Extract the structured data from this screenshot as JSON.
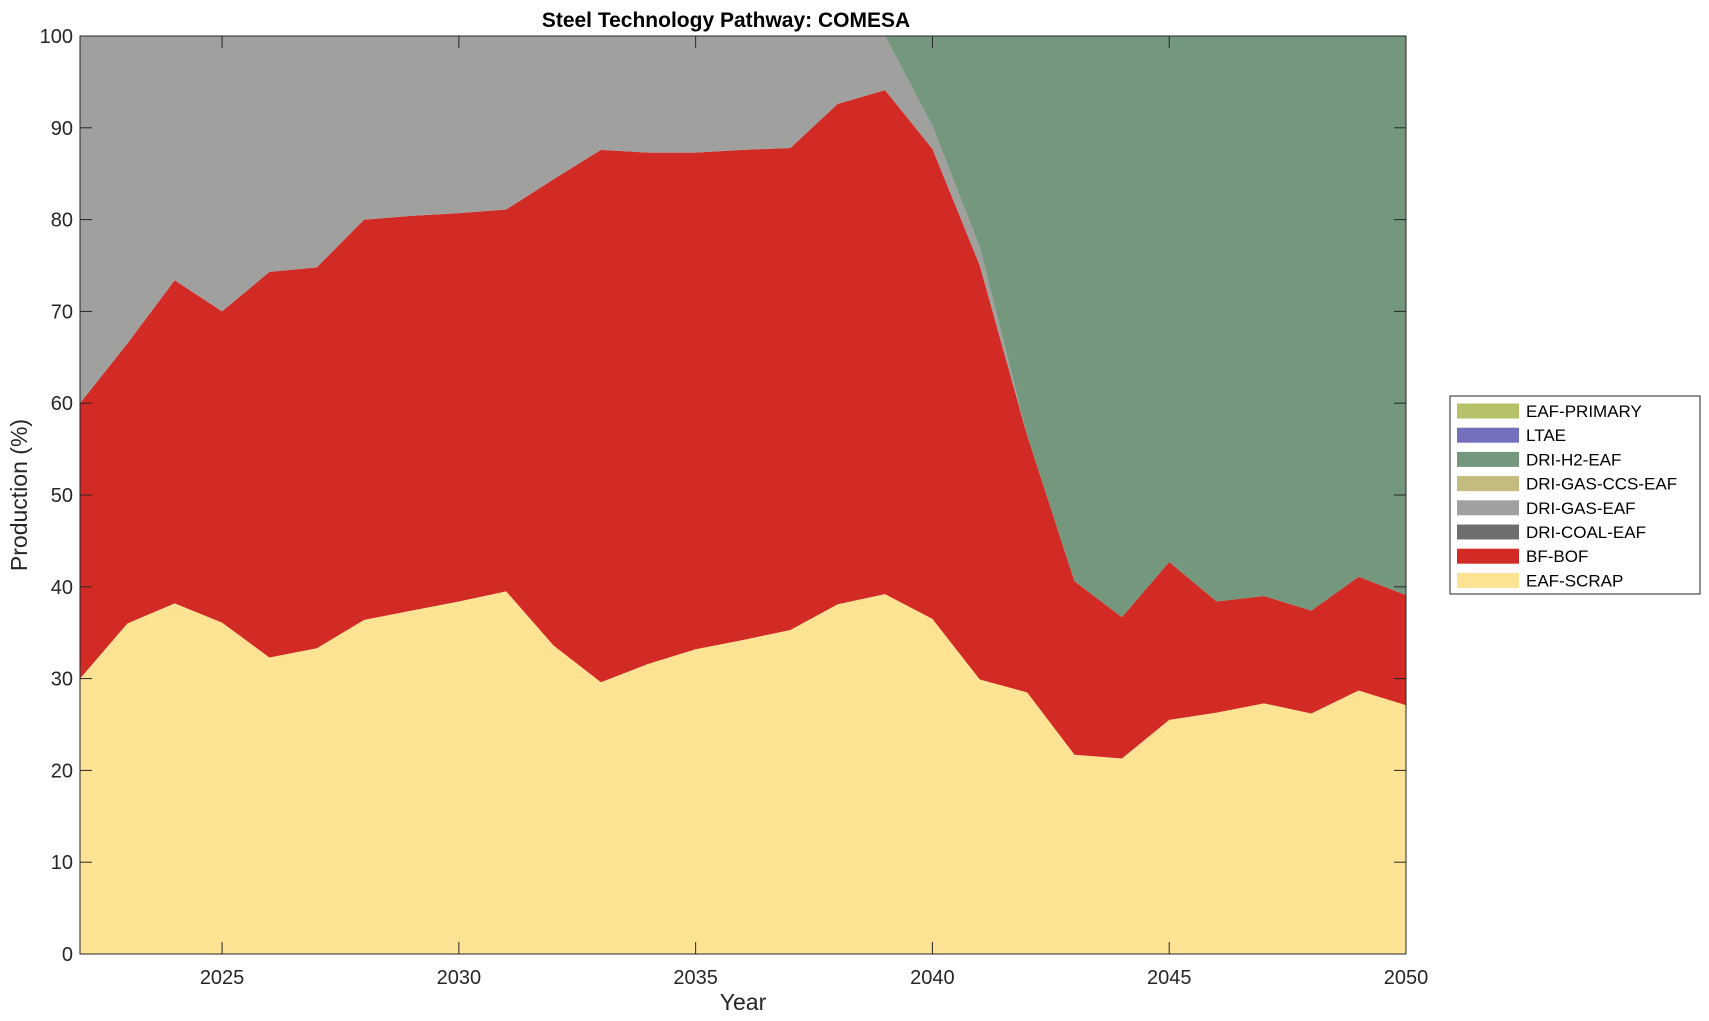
{
  "chart_data": {
    "type": "area",
    "stacked": true,
    "title": "Steel Technology Pathway: COMESA",
    "xlabel": "Year",
    "ylabel": "Production (%)",
    "xlim": [
      2022,
      2050
    ],
    "ylim": [
      0,
      100
    ],
    "xticks": [
      2025,
      2030,
      2035,
      2040,
      2045,
      2050
    ],
    "yticks": [
      0,
      10,
      20,
      30,
      40,
      50,
      60,
      70,
      80,
      90,
      100
    ],
    "grid": false,
    "legend_position": "right",
    "x": [
      2022,
      2023,
      2024,
      2025,
      2026,
      2027,
      2028,
      2029,
      2030,
      2031,
      2032,
      2033,
      2034,
      2035,
      2036,
      2037,
      2038,
      2039,
      2040,
      2041,
      2042,
      2043,
      2044,
      2045,
      2046,
      2047,
      2048,
      2049,
      2050
    ],
    "series": [
      {
        "name": "EAF-SCRAP",
        "color": "#FFE395",
        "values": [
          30.0,
          36.0,
          38.2,
          36.1,
          32.3,
          33.3,
          36.4,
          37.4,
          38.4,
          39.5,
          33.6,
          29.6,
          31.6,
          33.2,
          34.2,
          35.3,
          38.1,
          39.2,
          36.5,
          29.9,
          28.5,
          21.7,
          21.3,
          25.5,
          26.3,
          27.3,
          26.2,
          28.7,
          27.1
        ]
      },
      {
        "name": "BF-BOF",
        "color": "#D22B26",
        "values": [
          30.0,
          30.5,
          35.2,
          33.9,
          42.0,
          41.5,
          43.6,
          43.0,
          42.3,
          41.6,
          50.8,
          58.0,
          55.7,
          54.1,
          53.4,
          52.5,
          54.5,
          54.9,
          51.2,
          45.1,
          28.0,
          18.9,
          15.4,
          17.2,
          12.1,
          11.7,
          11.2,
          12.4,
          12.0
        ]
      },
      {
        "name": "DRI-COAL-EAF",
        "color": "#6E6E6E",
        "values": [
          0,
          0,
          0,
          0,
          0,
          0,
          0,
          0,
          0,
          0,
          0,
          0,
          0,
          0,
          0,
          0,
          0,
          0,
          0,
          0,
          0,
          0,
          0,
          0,
          0,
          0,
          0,
          0,
          0
        ]
      },
      {
        "name": "DRI-GAS-EAF",
        "color": "#A0A09E",
        "values": [
          40.0,
          33.5,
          26.6,
          30.0,
          25.7,
          25.2,
          20.0,
          19.6,
          19.3,
          18.9,
          15.6,
          12.4,
          12.7,
          12.7,
          12.4,
          12.2,
          7.4,
          5.9,
          2.5,
          2.0,
          0,
          0,
          0,
          0,
          0,
          0,
          0,
          0,
          0
        ]
      },
      {
        "name": "DRI-GAS-CCS-EAF",
        "color": "#C4BB7F",
        "values": [
          0,
          0,
          0,
          0,
          0,
          0,
          0,
          0,
          0,
          0,
          0,
          0,
          0,
          0,
          0,
          0,
          0,
          0,
          0,
          0,
          0,
          0,
          0,
          0,
          0,
          0,
          0,
          0,
          0
        ]
      },
      {
        "name": "DRI-H2-EAF",
        "color": "#74977E",
        "values": [
          0,
          0,
          0,
          0,
          0,
          0,
          0,
          0,
          0,
          0,
          0,
          0,
          0,
          0,
          0,
          0,
          0,
          0,
          9.8,
          23.0,
          43.5,
          59.4,
          63.3,
          57.3,
          61.6,
          61.0,
          62.6,
          58.9,
          60.9
        ]
      },
      {
        "name": "LTAE",
        "color": "#7570BD",
        "values": [
          0,
          0,
          0,
          0,
          0,
          0,
          0,
          0,
          0,
          0,
          0,
          0,
          0,
          0,
          0,
          0,
          0,
          0,
          0,
          0,
          0,
          0,
          0,
          0,
          0,
          0,
          0,
          0,
          0
        ]
      },
      {
        "name": "EAF-PRIMARY",
        "color": "#B6C168",
        "values": [
          0,
          0,
          0,
          0,
          0,
          0,
          0,
          0,
          0,
          0,
          0,
          0,
          0,
          0,
          0,
          0,
          0,
          0,
          0,
          0,
          0,
          0,
          0,
          0,
          0,
          0,
          0,
          0,
          0
        ]
      }
    ],
    "legend_order": [
      "EAF-PRIMARY",
      "LTAE",
      "DRI-H2-EAF",
      "DRI-GAS-CCS-EAF",
      "DRI-GAS-EAF",
      "DRI-COAL-EAF",
      "BF-BOF",
      "EAF-SCRAP"
    ]
  }
}
